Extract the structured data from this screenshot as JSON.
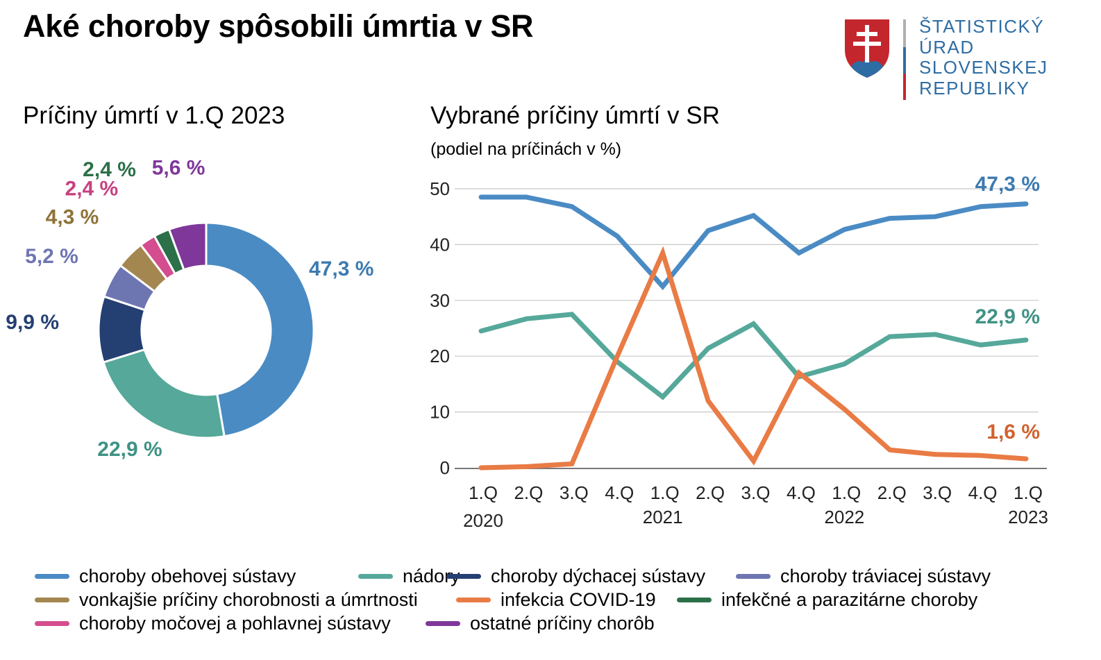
{
  "title": "Aké choroby spôsobili úmrtia v SR",
  "logo": {
    "lines": [
      "ŠTATISTICKÝ",
      "ÚRAD",
      "SLOVENSKEJ",
      "REPUBLIKY"
    ],
    "colors": {
      "text": "#2e6da4",
      "red": "#c4262e",
      "blue": "#2e6da4",
      "gray": "#b0b0b0",
      "white": "#ffffff"
    }
  },
  "chart_data": [
    {
      "type": "pie",
      "title": "Príčiny úmrtí v 1.Q 2023",
      "donut": true,
      "slices": [
        {
          "name": "choroby obehovej sústavy",
          "value": 47.3,
          "label": "47,3 %",
          "color": "#4a8bc4",
          "label_color": "#3d7ab0"
        },
        {
          "name": "nádory",
          "value": 22.9,
          "label": "22,9 %",
          "color": "#55a89a",
          "label_color": "#3f9285"
        },
        {
          "name": "choroby dýchacej sústavy",
          "value": 9.9,
          "label": "9,9 %",
          "color": "#243f72",
          "label_color": "#243f72"
        },
        {
          "name": "choroby tráviacej sústavy",
          "value": 5.2,
          "label": "5,2 %",
          "color": "#6e76b2",
          "label_color": "#6e76b2"
        },
        {
          "name": "vonkajšie príčiny chorobnosti a úmrtnosti",
          "value": 4.3,
          "label": "4,3 %",
          "color": "#a48650",
          "label_color": "#8f7238"
        },
        {
          "name": "choroby močovej a pohlavnej sústavy",
          "value": 2.4,
          "label": "2,4 %",
          "color": "#d44d8e",
          "label_color": "#c8407f"
        },
        {
          "name": "infekčné a parazitárne choroby",
          "value": 2.4,
          "label": "2,4 %",
          "color": "#2b7048",
          "label_color": "#2b7048"
        },
        {
          "name": "ostatné príčiny chorôb",
          "value": 5.6,
          "label": "5,6 %",
          "color": "#7f379a",
          "label_color": "#7f379a"
        }
      ]
    },
    {
      "type": "line",
      "title": "Vybrané príčiny úmrtí v SR",
      "subtitle": "(podiel na príčinách v %)",
      "ylim": [
        0,
        50
      ],
      "yticks": [
        0,
        10,
        20,
        30,
        40,
        50
      ],
      "grid": true,
      "quarters": [
        "1.Q",
        "2.Q",
        "3.Q",
        "4.Q",
        "1.Q",
        "2.Q",
        "3.Q",
        "4.Q",
        "1.Q",
        "2.Q",
        "3.Q",
        "4.Q",
        "1.Q"
      ],
      "years": [
        {
          "label": "2020",
          "index": 0
        },
        {
          "label": "2021",
          "index": 4
        },
        {
          "label": "2022",
          "index": 8
        },
        {
          "label": "2023",
          "index": 12
        }
      ],
      "series": [
        {
          "name": "choroby obehovej sústavy",
          "color": "#4a8bc4",
          "values": [
            48.5,
            48.5,
            46.8,
            41.5,
            32.5,
            42.5,
            45.2,
            38.5,
            42.7,
            44.7,
            45.0,
            46.8,
            47.3
          ],
          "end_label": "47,3 %",
          "label_color": "#3d7ab0"
        },
        {
          "name": "nádory",
          "color": "#55a89a",
          "values": [
            24.5,
            26.7,
            27.5,
            19.0,
            12.7,
            21.4,
            25.8,
            16.3,
            18.6,
            23.5,
            23.9,
            22.0,
            22.9
          ],
          "end_label": "22,9 %",
          "label_color": "#3f9285"
        },
        {
          "name": "infekcia COVID-19",
          "color": "#e97b45",
          "values": [
            0.0,
            0.2,
            0.7,
            20.0,
            38.5,
            12.0,
            1.2,
            17.0,
            10.5,
            3.2,
            2.4,
            2.2,
            1.6
          ],
          "end_label": "1,6 %",
          "label_color": "#d0622d"
        }
      ]
    }
  ],
  "legend": {
    "rows": [
      [
        {
          "label": "choroby obehovej sústavy",
          "color": "#4a8bc4"
        },
        {
          "label": "nádory",
          "color": "#55a89a"
        },
        {
          "label": "choroby dýchacej sústavy",
          "color": "#243f72"
        },
        {
          "label": "choroby tráviacej sústavy",
          "color": "#6e76b2"
        }
      ],
      [
        {
          "label": "vonkajšie príčiny chorobnosti a úmrtnosti",
          "color": "#a48650"
        },
        {
          "label": "infekcia COVID-19",
          "color": "#e97b45"
        },
        {
          "label": "infekčné a parazitárne choroby",
          "color": "#2b7048"
        }
      ],
      [
        {
          "label": "choroby močovej a pohlavnej sústavy",
          "color": "#d44d8e"
        },
        {
          "label": "ostatné príčiny chorôb",
          "color": "#7f379a"
        }
      ]
    ]
  }
}
